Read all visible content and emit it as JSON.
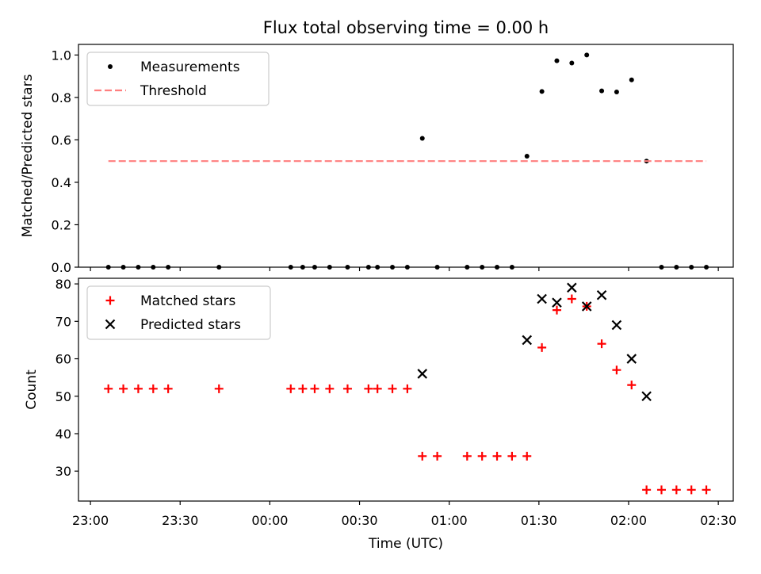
{
  "chart_data": {
    "title": "Flux total observing time = 0.00 h",
    "x_unit": "Time (UTC)",
    "x_ticks": [
      "23:00",
      "23:30",
      "00:00",
      "00:30",
      "01:00",
      "01:30",
      "02:00",
      "02:30"
    ],
    "xlim": [
      "22:56",
      "02:35"
    ],
    "panels": [
      {
        "type": "scatter",
        "ylabel": "Matched/Predicted stars",
        "ylim": [
          0,
          1.05
        ],
        "yticks": [
          "0.0",
          "0.2",
          "0.4",
          "0.6",
          "0.8",
          "1.0"
        ],
        "legend_position": "upper-left",
        "series": [
          {
            "name": "Measurements",
            "marker": "dot",
            "color": "#000000",
            "points": [
              {
                "x": "23:06",
                "y": 0.0
              },
              {
                "x": "23:11",
                "y": 0.0
              },
              {
                "x": "23:16",
                "y": 0.0
              },
              {
                "x": "23:21",
                "y": 0.0
              },
              {
                "x": "23:26",
                "y": 0.0
              },
              {
                "x": "23:43",
                "y": 0.0
              },
              {
                "x": "00:07",
                "y": 0.0
              },
              {
                "x": "00:11",
                "y": 0.0
              },
              {
                "x": "00:15",
                "y": 0.0
              },
              {
                "x": "00:20",
                "y": 0.0
              },
              {
                "x": "00:26",
                "y": 0.0
              },
              {
                "x": "00:33",
                "y": 0.0
              },
              {
                "x": "00:36",
                "y": 0.0
              },
              {
                "x": "00:41",
                "y": 0.0
              },
              {
                "x": "00:46",
                "y": 0.0
              },
              {
                "x": "00:51",
                "y": 0.607
              },
              {
                "x": "00:56",
                "y": 0.0
              },
              {
                "x": "01:06",
                "y": 0.0
              },
              {
                "x": "01:11",
                "y": 0.0
              },
              {
                "x": "01:16",
                "y": 0.0
              },
              {
                "x": "01:21",
                "y": 0.0
              },
              {
                "x": "01:26",
                "y": 0.523
              },
              {
                "x": "01:31",
                "y": 0.828
              },
              {
                "x": "01:36",
                "y": 0.973
              },
              {
                "x": "01:41",
                "y": 0.962
              },
              {
                "x": "01:46",
                "y": 1.0
              },
              {
                "x": "01:51",
                "y": 0.831
              },
              {
                "x": "01:56",
                "y": 0.826
              },
              {
                "x": "02:01",
                "y": 0.883
              },
              {
                "x": "02:06",
                "y": 0.5
              },
              {
                "x": "02:11",
                "y": 0.0
              },
              {
                "x": "02:16",
                "y": 0.0
              },
              {
                "x": "02:21",
                "y": 0.0
              },
              {
                "x": "02:26",
                "y": 0.0
              }
            ]
          },
          {
            "name": "Threshold",
            "marker": "dashed-line",
            "color": "#ff7f7f",
            "points": [
              {
                "x": "23:06",
                "y": 0.5
              },
              {
                "x": "02:26",
                "y": 0.5
              }
            ]
          }
        ]
      },
      {
        "type": "scatter",
        "ylabel": "Count",
        "ylim": [
          22,
          81.5
        ],
        "yticks": [
          "30",
          "40",
          "50",
          "60",
          "70",
          "80"
        ],
        "legend_position": "upper-left",
        "series": [
          {
            "name": "Matched stars",
            "marker": "plus",
            "color": "#ff0000",
            "points": [
              {
                "x": "23:06",
                "y": 52
              },
              {
                "x": "23:11",
                "y": 52
              },
              {
                "x": "23:16",
                "y": 52
              },
              {
                "x": "23:21",
                "y": 52
              },
              {
                "x": "23:26",
                "y": 52
              },
              {
                "x": "23:43",
                "y": 52
              },
              {
                "x": "00:07",
                "y": 52
              },
              {
                "x": "00:11",
                "y": 52
              },
              {
                "x": "00:15",
                "y": 52
              },
              {
                "x": "00:20",
                "y": 52
              },
              {
                "x": "00:26",
                "y": 52
              },
              {
                "x": "00:33",
                "y": 52
              },
              {
                "x": "00:36",
                "y": 52
              },
              {
                "x": "00:41",
                "y": 52
              },
              {
                "x": "00:46",
                "y": 52
              },
              {
                "x": "00:51",
                "y": 34
              },
              {
                "x": "00:56",
                "y": 34
              },
              {
                "x": "01:06",
                "y": 34
              },
              {
                "x": "01:11",
                "y": 34
              },
              {
                "x": "01:16",
                "y": 34
              },
              {
                "x": "01:21",
                "y": 34
              },
              {
                "x": "01:26",
                "y": 34
              },
              {
                "x": "01:31",
                "y": 63
              },
              {
                "x": "01:36",
                "y": 73
              },
              {
                "x": "01:41",
                "y": 76
              },
              {
                "x": "01:46",
                "y": 74
              },
              {
                "x": "01:51",
                "y": 64
              },
              {
                "x": "01:56",
                "y": 57
              },
              {
                "x": "02:01",
                "y": 53
              },
              {
                "x": "02:06",
                "y": 25
              },
              {
                "x": "02:11",
                "y": 25
              },
              {
                "x": "02:16",
                "y": 25
              },
              {
                "x": "02:21",
                "y": 25
              },
              {
                "x": "02:26",
                "y": 25
              }
            ]
          },
          {
            "name": "Predicted stars",
            "marker": "x",
            "color": "#000000",
            "points": [
              {
                "x": "00:51",
                "y": 56
              },
              {
                "x": "01:26",
                "y": 65
              },
              {
                "x": "01:31",
                "y": 76
              },
              {
                "x": "01:36",
                "y": 75
              },
              {
                "x": "01:41",
                "y": 79
              },
              {
                "x": "01:46",
                "y": 74
              },
              {
                "x": "01:51",
                "y": 77
              },
              {
                "x": "01:56",
                "y": 69
              },
              {
                "x": "02:01",
                "y": 60
              },
              {
                "x": "02:06",
                "y": 50
              }
            ]
          }
        ]
      }
    ]
  }
}
